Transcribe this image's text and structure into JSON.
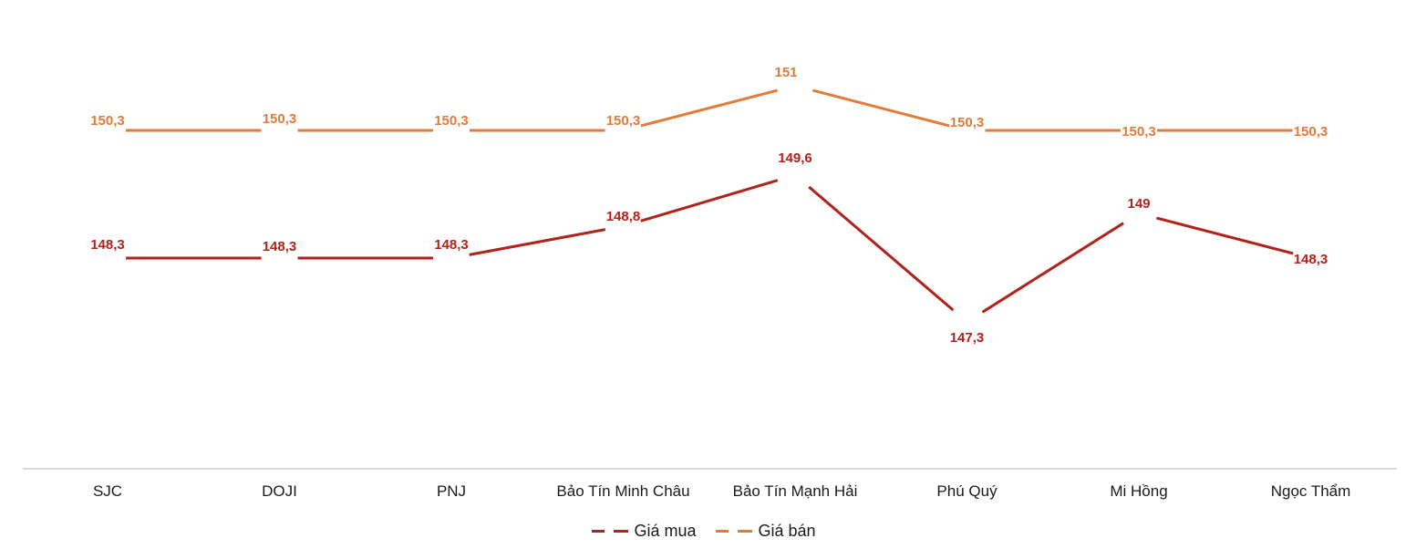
{
  "chart_data": {
    "type": "line",
    "title": "",
    "xlabel": "",
    "ylabel": "",
    "categories": [
      "SJC",
      "DOJI",
      "PNJ",
      "Bảo Tín Minh Châu",
      "Bảo Tín Mạnh Hải",
      "Phú Quý",
      "Mi Hồng",
      "Ngọc Thẩm"
    ],
    "series": [
      {
        "name": "Giá mua",
        "color": "#B0221A",
        "values": [
          148.3,
          148.3,
          148.3,
          148.8,
          149.6,
          147.3,
          149,
          148.3
        ],
        "labels": [
          "148,3",
          "148,3",
          "148,3",
          "148,8",
          "149,6",
          "147,3",
          "149",
          "148,3"
        ]
      },
      {
        "name": "Giá bán",
        "color": "#E07B39",
        "values": [
          150.3,
          150.3,
          150.3,
          150.3,
          151,
          150.3,
          150.3,
          150.3
        ],
        "labels": [
          "150,3",
          "150,3",
          "150,3",
          "150,3",
          "151",
          "150,3",
          "150,3",
          "150,3"
        ]
      }
    ],
    "grid": false,
    "legend_position": "bottom",
    "data_labels": true,
    "y_axis_visible": false
  },
  "legend": {
    "buy_label": "Giá mua",
    "sell_label": "Giá bán"
  },
  "axis": {
    "color": "#D9D9D9"
  }
}
